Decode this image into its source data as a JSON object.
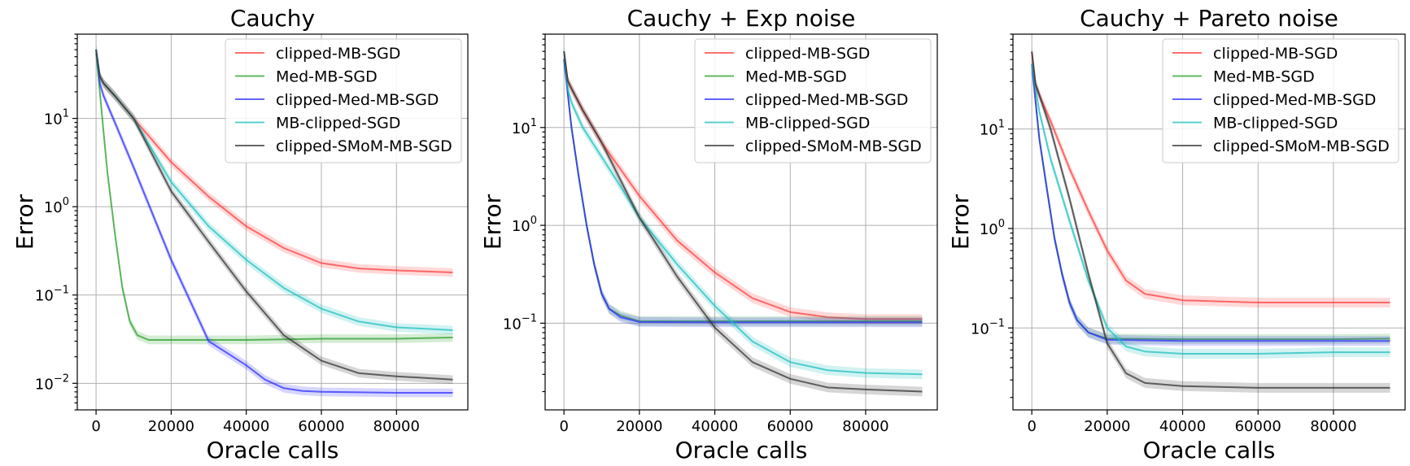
{
  "chart_data": [
    {
      "type": "line",
      "title": "Cauchy",
      "xlabel": "Oracle calls",
      "ylabel": "Error",
      "yscale": "log",
      "xlim": [
        -5000,
        99000
      ],
      "ylim": [
        0.005,
        90
      ],
      "xticks": [
        0,
        20000,
        40000,
        60000,
        80000
      ],
      "xtick_labels": [
        "0",
        "20000",
        "40000",
        "60000",
        "80000"
      ],
      "yticks": [
        0.01,
        0.1,
        1,
        10
      ],
      "ytick_labels": [
        [
          "10",
          "−2"
        ],
        [
          "10",
          "−1"
        ],
        [
          "10",
          "0"
        ],
        [
          "10",
          "1"
        ]
      ],
      "grid": true,
      "legend_loc": "upper right",
      "series": [
        {
          "name": "clipped-MB-SGD",
          "color": "#ff4040",
          "x": [
            0,
            1000,
            2000,
            5000,
            10000,
            20000,
            30000,
            40000,
            50000,
            60000,
            70000,
            80000,
            95000
          ],
          "y": [
            60,
            30,
            25,
            18,
            10,
            3.2,
            1.3,
            0.6,
            0.34,
            0.23,
            0.2,
            0.19,
            0.18
          ]
        },
        {
          "name": "Med-MB-SGD",
          "color": "#2ca02c",
          "x": [
            0,
            1000,
            2000,
            3000,
            5000,
            7000,
            9000,
            11000,
            14000,
            20000,
            40000,
            60000,
            80000,
            95000
          ],
          "y": [
            55,
            20,
            7,
            2.5,
            0.5,
            0.12,
            0.05,
            0.035,
            0.031,
            0.031,
            0.031,
            0.032,
            0.032,
            0.033
          ]
        },
        {
          "name": "clipped-Med-MB-SGD",
          "color": "#3030ff",
          "x": [
            0,
            1000,
            2000,
            5000,
            10000,
            20000,
            30000,
            40000,
            45000,
            50000,
            55000,
            60000,
            70000,
            80000,
            95000
          ],
          "y": [
            60,
            25,
            18,
            9,
            2.8,
            0.25,
            0.03,
            0.016,
            0.011,
            0.0088,
            0.0082,
            0.008,
            0.0079,
            0.0078,
            0.0078
          ]
        },
        {
          "name": "MB-clipped-SGD",
          "color": "#20c0c0",
          "x": [
            0,
            1000,
            2000,
            5000,
            10000,
            20000,
            30000,
            40000,
            50000,
            60000,
            70000,
            80000,
            95000
          ],
          "y": [
            60,
            30,
            25,
            18,
            10,
            1.9,
            0.6,
            0.25,
            0.12,
            0.07,
            0.05,
            0.043,
            0.04
          ]
        },
        {
          "name": "clipped-SMoM-MB-SGD",
          "color": "#333333",
          "x": [
            0,
            1000,
            2000,
            5000,
            10000,
            20000,
            30000,
            40000,
            50000,
            60000,
            70000,
            80000,
            95000
          ],
          "y": [
            60,
            30,
            25,
            18,
            10,
            1.5,
            0.4,
            0.11,
            0.035,
            0.018,
            0.013,
            0.012,
            0.011
          ]
        }
      ]
    },
    {
      "type": "line",
      "title": "Cauchy + Exp noise",
      "xlabel": "Oracle calls",
      "ylabel": "",
      "yscale": "log",
      "xlim": [
        -5000,
        99000
      ],
      "ylim": [
        0.013,
        90
      ],
      "xticks": [
        0,
        20000,
        40000,
        60000,
        80000
      ],
      "xtick_labels": [
        "0",
        "20000",
        "40000",
        "60000",
        "80000"
      ],
      "yticks": [
        0.1,
        1,
        10
      ],
      "ytick_labels": [
        [
          "10",
          "−1"
        ],
        [
          "10",
          "0"
        ],
        [
          "10",
          "1"
        ]
      ],
      "grid": true,
      "legend_loc": "upper right",
      "series": [
        {
          "name": "clipped-MB-SGD",
          "color": "#ff4040",
          "x": [
            0,
            1000,
            2000,
            5000,
            10000,
            20000,
            30000,
            40000,
            50000,
            60000,
            70000,
            80000,
            95000
          ],
          "y": [
            60,
            30,
            25,
            15,
            7,
            2,
            0.7,
            0.33,
            0.18,
            0.13,
            0.115,
            0.11,
            0.11
          ]
        },
        {
          "name": "Med-MB-SGD",
          "color": "#2ca02c",
          "x": [
            0,
            2000,
            4000,
            6000,
            8000,
            10000,
            12000,
            15000,
            20000,
            40000,
            60000,
            80000,
            95000
          ],
          "y": [
            50,
            10,
            3,
            1,
            0.4,
            0.2,
            0.14,
            0.12,
            0.105,
            0.105,
            0.105,
            0.105,
            0.105
          ]
        },
        {
          "name": "clipped-Med-MB-SGD",
          "color": "#3030ff",
          "x": [
            0,
            2000,
            4000,
            6000,
            8000,
            10000,
            12000,
            15000,
            20000,
            40000,
            60000,
            80000,
            95000
          ],
          "y": [
            50,
            10,
            3,
            1,
            0.4,
            0.2,
            0.14,
            0.115,
            0.103,
            0.102,
            0.102,
            0.102,
            0.102
          ]
        },
        {
          "name": "MB-clipped-SGD",
          "color": "#20c0c0",
          "x": [
            0,
            1000,
            2000,
            5000,
            10000,
            15000,
            20000,
            30000,
            40000,
            50000,
            60000,
            70000,
            80000,
            95000
          ],
          "y": [
            60,
            25,
            18,
            10,
            5,
            2.5,
            1.2,
            0.4,
            0.15,
            0.065,
            0.04,
            0.033,
            0.031,
            0.03
          ]
        },
        {
          "name": "clipped-SMoM-MB-SGD",
          "color": "#333333",
          "x": [
            0,
            1000,
            2000,
            5000,
            10000,
            20000,
            30000,
            40000,
            50000,
            60000,
            70000,
            80000,
            95000
          ],
          "y": [
            60,
            30,
            25,
            15,
            7,
            1.2,
            0.3,
            0.09,
            0.04,
            0.027,
            0.022,
            0.021,
            0.02
          ]
        }
      ]
    },
    {
      "type": "line",
      "title": "Cauchy + Pareto noise",
      "xlabel": "Oracle calls",
      "ylabel": "Error",
      "yscale": "log",
      "xlim": [
        -5000,
        99000
      ],
      "ylim": [
        0.015,
        90
      ],
      "xticks": [
        0,
        20000,
        40000,
        60000,
        80000
      ],
      "xtick_labels": [
        "0",
        "20000",
        "40000",
        "60000",
        "80000"
      ],
      "yticks": [
        0.1,
        1,
        10
      ],
      "ytick_labels": [
        [
          "10",
          "−1"
        ],
        [
          "10",
          "0"
        ],
        [
          "10",
          "1"
        ]
      ],
      "grid": true,
      "legend_loc": "upper right",
      "series": [
        {
          "name": "clipped-MB-SGD",
          "color": "#ff4040",
          "x": [
            0,
            1000,
            2000,
            5000,
            10000,
            15000,
            20000,
            25000,
            30000,
            40000,
            60000,
            80000,
            95000
          ],
          "y": [
            60,
            28,
            22,
            12,
            4,
            1.5,
            0.6,
            0.3,
            0.22,
            0.19,
            0.18,
            0.18,
            0.18
          ]
        },
        {
          "name": "Med-MB-SGD",
          "color": "#2ca02c",
          "x": [
            0,
            2000,
            4000,
            6000,
            8000,
            10000,
            12000,
            15000,
            20000,
            40000,
            60000,
            80000,
            95000
          ],
          "y": [
            45,
            8,
            2.5,
            0.8,
            0.35,
            0.18,
            0.12,
            0.09,
            0.078,
            0.077,
            0.077,
            0.077,
            0.078
          ]
        },
        {
          "name": "clipped-Med-MB-SGD",
          "color": "#3030ff",
          "x": [
            0,
            2000,
            4000,
            6000,
            8000,
            10000,
            12000,
            15000,
            20000,
            40000,
            60000,
            80000,
            95000
          ],
          "y": [
            45,
            8,
            2.5,
            0.8,
            0.35,
            0.18,
            0.12,
            0.09,
            0.076,
            0.074,
            0.074,
            0.074,
            0.074
          ]
        },
        {
          "name": "MB-clipped-SGD",
          "color": "#20c0c0",
          "x": [
            0,
            2000,
            5000,
            10000,
            15000,
            20000,
            25000,
            30000,
            40000,
            60000,
            80000,
            95000
          ],
          "y": [
            45,
            15,
            5,
            1.2,
            0.3,
            0.1,
            0.065,
            0.058,
            0.055,
            0.055,
            0.057,
            0.057
          ]
        },
        {
          "name": "clipped-SMoM-MB-SGD",
          "color": "#333333",
          "x": [
            0,
            1000,
            2000,
            5000,
            10000,
            15000,
            20000,
            25000,
            30000,
            40000,
            60000,
            80000,
            95000
          ],
          "y": [
            60,
            28,
            22,
            10,
            2,
            0.35,
            0.07,
            0.035,
            0.028,
            0.026,
            0.025,
            0.025,
            0.025
          ]
        }
      ]
    }
  ]
}
